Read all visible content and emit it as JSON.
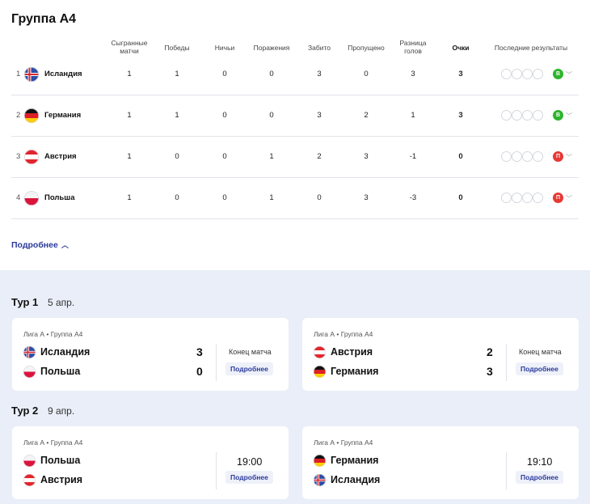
{
  "group": {
    "title": "Группа А4"
  },
  "table_headers": {
    "played": "Сыгранные матчи",
    "wins": "Победы",
    "draws": "Ничьи",
    "losses": "Поражения",
    "scored": "Забито",
    "conceded": "Пропущено",
    "diff": "Разница голов",
    "points": "Очки",
    "last": "Последние результаты"
  },
  "standings": [
    {
      "pos": "1",
      "team": "Исландия",
      "flag": "iceland",
      "played": "1",
      "wins": "1",
      "draws": "0",
      "losses": "0",
      "scored": "3",
      "conceded": "0",
      "diff": "3",
      "points": "3",
      "last": "В",
      "last_color": "#2cb52c"
    },
    {
      "pos": "2",
      "team": "Германия",
      "flag": "germany",
      "played": "1",
      "wins": "1",
      "draws": "0",
      "losses": "0",
      "scored": "3",
      "conceded": "2",
      "diff": "1",
      "points": "3",
      "last": "В",
      "last_color": "#2cb52c"
    },
    {
      "pos": "3",
      "team": "Австрия",
      "flag": "austria",
      "played": "1",
      "wins": "0",
      "draws": "0",
      "losses": "1",
      "scored": "2",
      "conceded": "3",
      "diff": "-1",
      "points": "0",
      "last": "П",
      "last_color": "#e53935"
    },
    {
      "pos": "4",
      "team": "Польша",
      "flag": "poland",
      "played": "1",
      "wins": "0",
      "draws": "0",
      "losses": "1",
      "scored": "0",
      "conceded": "3",
      "diff": "-3",
      "points": "0",
      "last": "П",
      "last_color": "#e53935"
    }
  ],
  "more_label": "Подробнее",
  "tours": [
    {
      "label": "Тур 1",
      "date": "5 апр.",
      "matches": [
        {
          "league": "Лига А • Группа А4",
          "home": "Исландия",
          "home_flag": "iceland",
          "home_score": "3",
          "away": "Польша",
          "away_flag": "poland",
          "away_score": "0",
          "status": "Конец матча",
          "button": "Подробнее"
        },
        {
          "league": "Лига А • Группа А4",
          "home": "Австрия",
          "home_flag": "austria",
          "home_score": "2",
          "away": "Германия",
          "away_flag": "germany",
          "away_score": "3",
          "status": "Конец матча",
          "button": "Подробнее"
        }
      ]
    },
    {
      "label": "Тур 2",
      "date": "9 апр.",
      "matches": [
        {
          "league": "Лига А • Группа А4",
          "home": "Польша",
          "home_flag": "poland",
          "away": "Австрия",
          "away_flag": "austria",
          "time": "19:00",
          "button": "Подробнее"
        },
        {
          "league": "Лига А • Группа А4",
          "home": "Германия",
          "home_flag": "germany",
          "away": "Исландия",
          "away_flag": "iceland",
          "time": "19:10",
          "button": "Подробнее"
        }
      ]
    }
  ]
}
